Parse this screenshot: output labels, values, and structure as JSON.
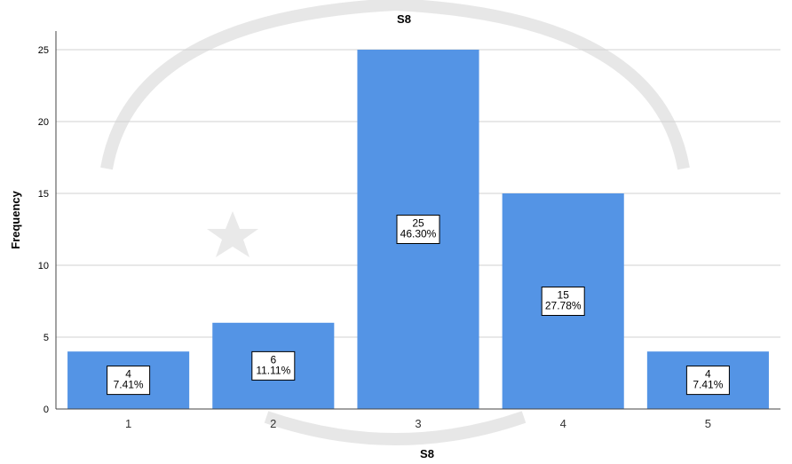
{
  "chart_data": {
    "type": "bar",
    "title": "S8",
    "xlabel": "S8",
    "ylabel": "Frequency",
    "categories": [
      "1",
      "2",
      "3",
      "4",
      "5"
    ],
    "values": [
      4,
      6,
      25,
      15,
      4
    ],
    "data_labels": [
      [
        "4",
        "7.41%"
      ],
      [
        "6",
        "11.11%"
      ],
      [
        "25",
        "46.30%"
      ],
      [
        "15",
        "27.78%"
      ],
      [
        "4",
        "7.41%"
      ]
    ],
    "y_ticks": [
      "0",
      "5",
      "10",
      "15",
      "20",
      "25"
    ],
    "ylim": [
      0,
      25
    ],
    "grid": "horizontal",
    "bar_color": "#5494E5"
  }
}
